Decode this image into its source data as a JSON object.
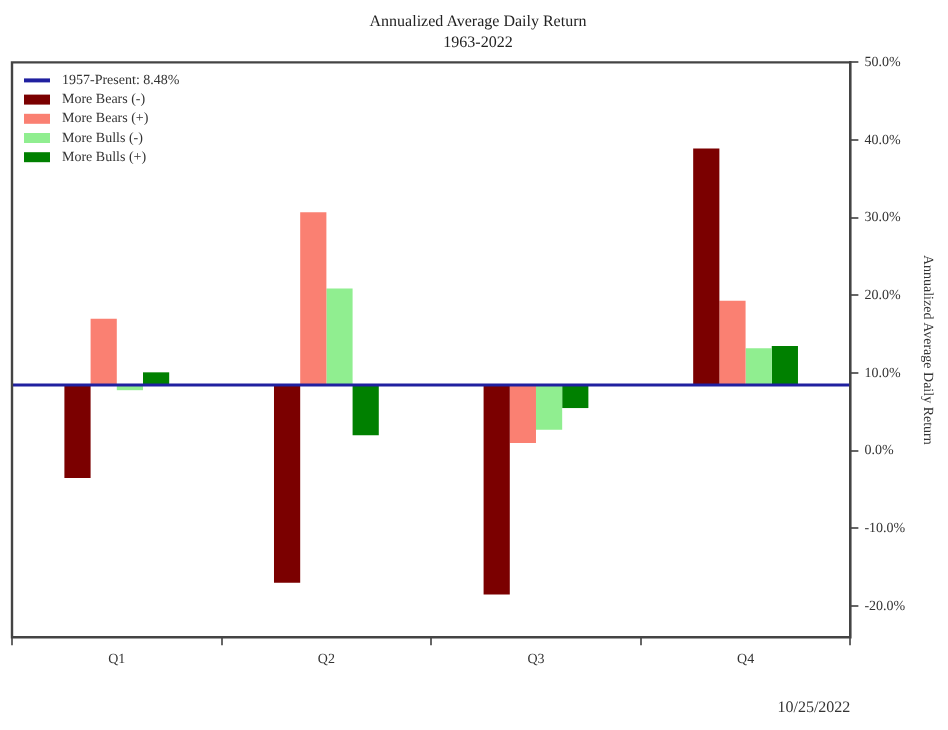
{
  "chart_data": {
    "type": "bar",
    "title": "Annualized Average Daily Return",
    "subtitle": "1963-2022",
    "ylabel": "Annualized Average Daily Return",
    "categories": [
      "Q1",
      "Q2",
      "Q3",
      "Q4"
    ],
    "series": [
      {
        "name": "More Bears (-)",
        "color": "#7b0000",
        "base": [
          8.48,
          8.48,
          8.48,
          8.48
        ],
        "values": [
          -11.98,
          -25.48,
          -26.98,
          30.42
        ]
      },
      {
        "name": "More Bears (+)",
        "color": "#fa8072",
        "base": [
          8.48,
          8.48,
          8.48,
          8.48
        ],
        "values": [
          8.52,
          22.22,
          -7.48,
          10.82
        ]
      },
      {
        "name": "More Bulls (-)",
        "color": "#90ee90",
        "base": [
          8.48,
          8.48,
          8.48,
          8.48
        ],
        "values": [
          -0.68,
          12.42,
          -5.78,
          4.72
        ]
      },
      {
        "name": "More Bulls (+)",
        "color": "#008000",
        "base": [
          8.48,
          8.48,
          8.48,
          8.48
        ],
        "values": [
          1.62,
          -6.48,
          -2.98,
          5.02
        ]
      }
    ],
    "ref_lines": [
      {
        "axis": "y",
        "value": 8.48,
        "label": "1957-Present: 8.48%",
        "color": "#2020a0"
      }
    ],
    "ylim": [
      -24,
      50
    ],
    "yticks": [
      {
        "value": -20,
        "label": "-20.0%"
      },
      {
        "value": -10,
        "label": "-10.0%"
      },
      {
        "value": 0,
        "label": "0.0%"
      },
      {
        "value": 10,
        "label": "10.0%"
      },
      {
        "value": 20,
        "label": "20.0%"
      },
      {
        "value": 30,
        "label": "30.0%"
      },
      {
        "value": 40,
        "label": "40.0%"
      },
      {
        "value": 50,
        "label": "50.0%"
      }
    ],
    "grid": false,
    "legend": "top left",
    "annotations": [
      "10/25/2022"
    ]
  }
}
